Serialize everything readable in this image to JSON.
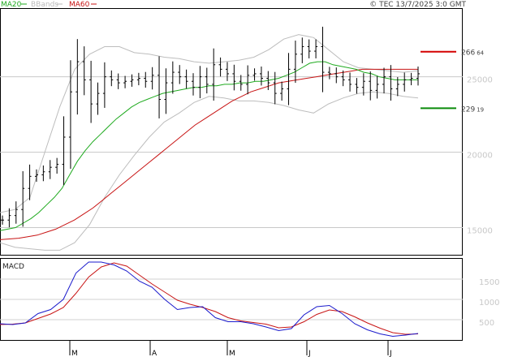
{
  "header": {
    "legend": [
      {
        "label": "MA20",
        "color": "#1faa1f"
      },
      {
        "label": "BBands",
        "color": "#bbbbbb"
      },
      {
        "label": "MA60",
        "color": "#c81414"
      }
    ],
    "copyright": "© TEC 13/7/2025 3:0 GMT"
  },
  "chart_data": [
    {
      "type": "ohlc",
      "x_ticks": [
        "M",
        "A",
        "M",
        "J",
        "J"
      ],
      "y_ticks": [
        {
          "label": "25000",
          "value": 25000
        },
        {
          "label": "20000",
          "value": 20000
        },
        {
          "label": "15000",
          "value": 15000
        }
      ],
      "ylim": [
        13200,
        29500
      ],
      "levels": [
        {
          "label": "266",
          "sub": "64",
          "value": 26664,
          "color": "#d40000"
        },
        {
          "label": "229",
          "sub": "19",
          "value": 22919,
          "color": "#0a8a0a"
        }
      ],
      "price": [
        15500,
        15800,
        16200,
        17600,
        18400,
        18500,
        18700,
        19000,
        19200,
        21000,
        24000,
        26000,
        24800,
        23200,
        23900,
        25000,
        24800,
        24600,
        24700,
        24800,
        24900,
        24700,
        25100,
        23500,
        24600,
        25300,
        25000,
        24700,
        24300,
        25000,
        24500,
        25800,
        25500,
        25200,
        24700,
        24500,
        25100,
        25200,
        24900,
        24600,
        23900,
        24200,
        25500,
        26500,
        27000,
        26700,
        27000,
        25300,
        25200,
        25000,
        24800,
        24500,
        24300,
        24700,
        24100,
        24500,
        25000,
        24200,
        24500,
        24800,
        24900,
        25200
      ],
      "ma20": [
        14800,
        14900,
        15000,
        15300,
        15600,
        16000,
        16500,
        17000,
        17600,
        18500,
        19400,
        20100,
        20700,
        21200,
        21700,
        22200,
        22600,
        23000,
        23300,
        23500,
        23700,
        23900,
        24000,
        24100,
        24200,
        24300,
        24300,
        24400,
        24400,
        24500,
        24500,
        24600,
        24600,
        24700,
        24700,
        24800,
        24900,
        25100,
        25300,
        25600,
        25900,
        26000,
        26000,
        25800,
        25700,
        25600,
        25500,
        25300,
        25200,
        25000,
        24900,
        24800,
        24800,
        24800,
        24800
      ],
      "ma60": [
        14200,
        14250,
        14300,
        14400,
        14500,
        14700,
        14900,
        15200,
        15500,
        15900,
        16300,
        16800,
        17300,
        17800,
        18300,
        18800,
        19300,
        19800,
        20300,
        20800,
        21300,
        21800,
        22200,
        22600,
        23000,
        23400,
        23700,
        24000,
        24200,
        24400,
        24600,
        24700,
        24800,
        24900,
        25000,
        25100,
        25200,
        25300,
        25400,
        25500,
        25500,
        25500,
        25500,
        25500,
        25500,
        25500
      ],
      "bb_upper": [
        16000,
        16200,
        17000,
        20000,
        23000,
        25500,
        26500,
        27000,
        27000,
        26600,
        26500,
        26300,
        26200,
        26000,
        25900,
        26000,
        26100,
        26300,
        26800,
        27500,
        27800,
        27600,
        26800,
        26000,
        25600,
        25500,
        25400,
        25300,
        25400
      ],
      "bb_lower": [
        14000,
        13700,
        13600,
        13500,
        13500,
        14000,
        15200,
        17000,
        18500,
        19800,
        21000,
        22000,
        22600,
        23300,
        23700,
        23600,
        23400,
        23400,
        23300,
        23100,
        22800,
        22600,
        23200,
        23600,
        23900,
        24000,
        23900,
        23700,
        23600
      ]
    },
    {
      "type": "line",
      "title": "MACD",
      "y_ticks": [
        {
          "label": "1500",
          "value": 1500
        },
        {
          "label": "1000",
          "value": 1000
        },
        {
          "label": "500",
          "value": 500
        }
      ],
      "ylim": [
        0,
        2000
      ],
      "macd": [
        400,
        380,
        420,
        650,
        750,
        1000,
        1650,
        1920,
        1920,
        1850,
        1700,
        1450,
        1300,
        1000,
        750,
        800,
        820,
        550,
        450,
        450,
        400,
        320,
        230,
        280,
        620,
        820,
        850,
        650,
        400,
        250,
        150,
        90,
        120,
        160
      ],
      "signal": [
        380,
        390,
        420,
        530,
        640,
        800,
        1150,
        1550,
        1800,
        1900,
        1820,
        1600,
        1380,
        1180,
        980,
        880,
        800,
        700,
        550,
        470,
        430,
        390,
        300,
        320,
        450,
        630,
        740,
        700,
        570,
        420,
        290,
        180,
        140,
        150
      ]
    }
  ]
}
